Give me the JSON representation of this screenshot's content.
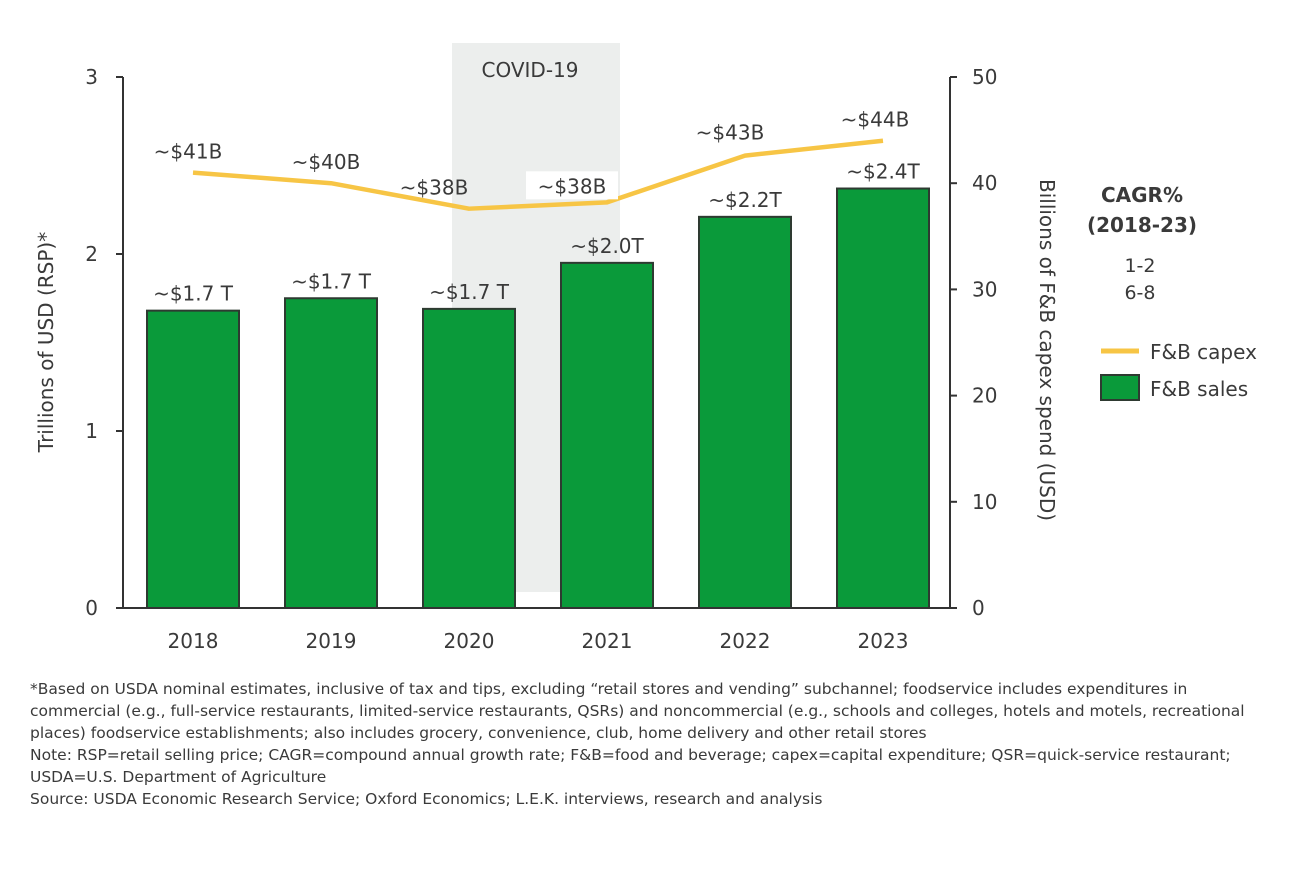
{
  "chart_data": {
    "type": "bar+line",
    "categories": [
      "2018",
      "2019",
      "2020",
      "2021",
      "2022",
      "2023"
    ],
    "series": [
      {
        "name": "F&B sales",
        "type": "bar",
        "axis": "left",
        "values": [
          1.68,
          1.75,
          1.69,
          1.95,
          2.21,
          2.37
        ],
        "labels": [
          "~$1.7 T",
          "~$1.7 T",
          "~$1.7 T",
          "~$2.0T",
          "~$2.2T",
          "~$2.4T"
        ],
        "color": "#0a9a3a"
      },
      {
        "name": "F&B capex",
        "type": "line",
        "axis": "right",
        "values": [
          41,
          40,
          37.6,
          38.2,
          42.6,
          44
        ],
        "labels": [
          "~$41B",
          "~$40B",
          "~$38B",
          "~$38B",
          "~$43B",
          "~$44B"
        ],
        "color": "#f7c545"
      }
    ],
    "ylabel_left": "Trillions of USD (RSP)*",
    "ylabel_right": "Billions of F&B capex spend (USD)",
    "ylim_left": [
      0,
      3
    ],
    "yticks_left": [
      "0",
      "1",
      "2",
      "3"
    ],
    "ylim_right": [
      0,
      50
    ],
    "yticks_right": [
      "0",
      "10",
      "20",
      "30",
      "40",
      "50"
    ],
    "annotation": {
      "label": "COVID-19",
      "region": [
        "2020",
        "2021"
      ],
      "color": "#eceeed"
    },
    "cagr": {
      "title": "CAGR%",
      "subtitle": "(2018-23)",
      "values": [
        "1-2",
        "6-8"
      ]
    },
    "legend": [
      "F&B capex",
      "F&B sales"
    ],
    "legend_placement": "right",
    "grid": false
  },
  "notes": [
    "*Based on USDA nominal estimates, inclusive of tax and tips, excluding “retail stores and vending” subchannel; foodservice includes expenditures in commercial (e.g., full-service restaurants, limited-service restaurants, QSRs) and noncommercial (e.g., schools and colleges, hotels and motels, recreational places) foodservice establishments; also includes grocery, convenience, club, home delivery and other retail stores",
    "Note: RSP=retail selling price; CAGR=compound annual growth rate; F&B=food and beverage; capex=capital expenditure; QSR=quick-service restaurant; USDA=U.S. Department of Agriculture",
    "Source: USDA Economic Research Service; Oxford Economics; L.E.K. interviews, research and analysis"
  ]
}
